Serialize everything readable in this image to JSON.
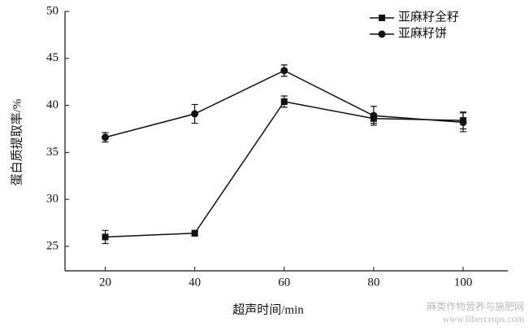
{
  "chart_data": {
    "type": "line",
    "x_label": "超声时间/min",
    "y_label": "蛋白质提取率/%",
    "x": [
      20,
      40,
      60,
      80,
      100
    ],
    "series": [
      {
        "name": "亚麻籽全籽",
        "color": "#111111",
        "marker": "square",
        "values": [
          26.0,
          26.4,
          40.4,
          38.6,
          38.4
        ],
        "errors": [
          0.7,
          0.3,
          0.6,
          0.5,
          0.9
        ]
      },
      {
        "name": "亚麻籽饼",
        "color": "#111111",
        "marker": "circle",
        "values": [
          36.6,
          39.1,
          43.7,
          38.9,
          38.2
        ],
        "errors": [
          0.5,
          1.0,
          0.6,
          1.0,
          1.0
        ]
      }
    ],
    "xlim": [
      11,
      110
    ],
    "xticks": [
      20,
      40,
      60,
      80,
      100
    ],
    "ylim": [
      22.4,
      50
    ],
    "yticks": [
      25,
      30,
      35,
      40,
      45,
      50
    ],
    "grid": false,
    "legend": "upper right",
    "watermark": [
      "麻类作物营养与施肥网",
      "www.fibercrops.com"
    ]
  }
}
